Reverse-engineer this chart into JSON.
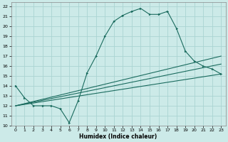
{
  "xlabel": "Humidex (Indice chaleur)",
  "xlim": [
    -0.5,
    23.5
  ],
  "ylim": [
    10,
    22.4
  ],
  "xticks": [
    0,
    1,
    2,
    3,
    4,
    5,
    6,
    7,
    8,
    9,
    10,
    11,
    12,
    13,
    14,
    15,
    16,
    17,
    18,
    19,
    20,
    21,
    22,
    23
  ],
  "yticks": [
    10,
    11,
    12,
    13,
    14,
    15,
    16,
    17,
    18,
    19,
    20,
    21,
    22
  ],
  "bg_color": "#cceae8",
  "grid_color": "#aad4d2",
  "line_color": "#1a6b5e",
  "curve1_x": [
    0,
    1,
    2,
    3,
    4,
    5,
    6,
    7,
    8,
    9,
    10,
    11,
    12,
    13,
    14,
    15,
    16,
    17,
    18,
    19,
    20,
    21,
    22,
    23
  ],
  "curve1_y": [
    14.0,
    12.8,
    12.0,
    12.0,
    12.0,
    11.7,
    10.3,
    12.5,
    15.3,
    17.0,
    19.0,
    20.5,
    21.1,
    21.5,
    21.8,
    21.2,
    21.2,
    21.5,
    19.8,
    17.5,
    16.5,
    16.0,
    15.7,
    15.2
  ],
  "line2_x": [
    0,
    23
  ],
  "line2_y": [
    12.0,
    17.0
  ],
  "line3_x": [
    0,
    23
  ],
  "line3_y": [
    12.0,
    16.2
  ],
  "line4_x": [
    0,
    23
  ],
  "line4_y": [
    12.0,
    15.2
  ]
}
